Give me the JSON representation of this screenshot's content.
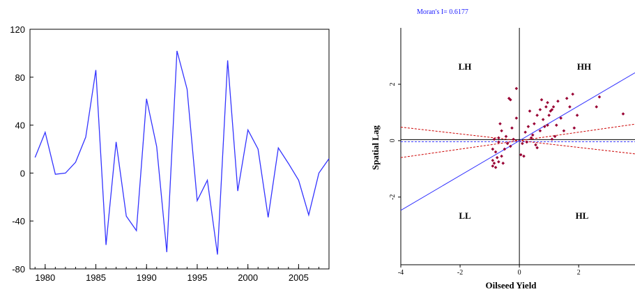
{
  "chart_data": [
    {
      "type": "line",
      "title": "",
      "xlabel": "",
      "ylabel": "",
      "x": [
        1979,
        1980,
        1981,
        1982,
        1983,
        1984,
        1985,
        1986,
        1987,
        1988,
        1989,
        1990,
        1991,
        1992,
        1993,
        1994,
        1995,
        1996,
        1997,
        1998,
        1999,
        2000,
        2001,
        2002,
        2003,
        2004,
        2005,
        2006,
        2007,
        2008
      ],
      "series": [
        {
          "values": [
            13,
            34,
            -1,
            0,
            9,
            30,
            86,
            -60,
            26,
            -36,
            -48,
            62,
            22,
            -66,
            102,
            70,
            -23,
            -6,
            -68,
            94,
            -15,
            36,
            20,
            -37,
            21,
            8,
            -6,
            -35,
            0,
            12
          ],
          "color": "#3333ff"
        }
      ],
      "xlim": [
        1978.5,
        2008
      ],
      "ylim": [
        -80,
        120
      ],
      "xticks": [
        1980,
        1985,
        1990,
        1995,
        2000,
        2005
      ],
      "yticks": [
        -80,
        -40,
        0,
        40,
        80,
        120
      ],
      "grid": false
    },
    {
      "type": "scatter",
      "title": "Moran's I= 0.6177",
      "xlabel": "Oilseed   Yield",
      "ylabel": "Spatial   Lag",
      "xlim": [
        -4,
        3.9
      ],
      "ylim": [
        -4.4,
        4
      ],
      "xticks": [
        -4,
        -2,
        0,
        2
      ],
      "yticks": [
        -2,
        0,
        2
      ],
      "quadrant_labels": {
        "LH": "LH",
        "HH": "HH",
        "LL": "LL",
        "HL": "HL"
      },
      "point_color": "#990033",
      "regression": {
        "slope": 0.6177,
        "intercept": 0,
        "color": "#3333ff"
      },
      "confidence_bands": {
        "slopes": [
          0.15,
          -0.12
        ],
        "color": "#cc0000"
      },
      "points": [
        [
          -0.9,
          -0.9
        ],
        [
          -0.85,
          -0.8
        ],
        [
          -0.9,
          -0.7
        ],
        [
          -0.8,
          -0.95
        ],
        [
          -0.75,
          -0.6
        ],
        [
          -0.7,
          -0.75
        ],
        [
          -0.8,
          -0.4
        ],
        [
          -0.6,
          -0.55
        ],
        [
          -0.55,
          -0.8
        ],
        [
          -0.9,
          -0.3
        ],
        [
          -0.85,
          0.05
        ],
        [
          -0.7,
          0.1
        ],
        [
          -0.6,
          0.35
        ],
        [
          -0.65,
          0.6
        ],
        [
          -0.7,
          -0.05
        ],
        [
          -0.5,
          -0.3
        ],
        [
          -0.4,
          -0.1
        ],
        [
          -0.3,
          -0.2
        ],
        [
          -0.45,
          0.15
        ],
        [
          -0.25,
          0.45
        ],
        [
          -0.35,
          1.5
        ],
        [
          -0.3,
          1.45
        ],
        [
          -0.1,
          1.85
        ],
        [
          -0.1,
          0.8
        ],
        [
          0.05,
          -0.5
        ],
        [
          0.15,
          -0.55
        ],
        [
          0.1,
          -0.1
        ],
        [
          0.2,
          0.3
        ],
        [
          0.3,
          0.5
        ],
        [
          0.35,
          1.05
        ],
        [
          0.45,
          0.2
        ],
        [
          0.5,
          0.6
        ],
        [
          0.55,
          -0.15
        ],
        [
          0.6,
          0.9
        ],
        [
          0.7,
          0.35
        ],
        [
          0.7,
          1.1
        ],
        [
          0.75,
          1.45
        ],
        [
          0.8,
          0.75
        ],
        [
          0.85,
          0.5
        ],
        [
          0.9,
          1.2
        ],
        [
          0.95,
          1.35
        ],
        [
          1.0,
          0.9
        ],
        [
          1.05,
          1.05
        ],
        [
          1.1,
          1.1
        ],
        [
          1.15,
          1.2
        ],
        [
          1.2,
          0.15
        ],
        [
          1.1,
          0.05
        ],
        [
          1.25,
          0.55
        ],
        [
          1.3,
          1.4
        ],
        [
          1.4,
          0.8
        ],
        [
          1.5,
          0.35
        ],
        [
          1.6,
          1.5
        ],
        [
          1.7,
          1.2
        ],
        [
          1.8,
          1.65
        ],
        [
          1.85,
          0.45
        ],
        [
          1.95,
          0.9
        ],
        [
          2.6,
          1.2
        ],
        [
          2.7,
          1.55
        ],
        [
          3.5,
          0.95
        ],
        [
          0.6,
          -0.25
        ],
        [
          0.4,
          0.1
        ],
        [
          -0.2,
          0.05
        ],
        [
          0.25,
          -0.05
        ],
        [
          0.95,
          0.55
        ]
      ]
    }
  ]
}
